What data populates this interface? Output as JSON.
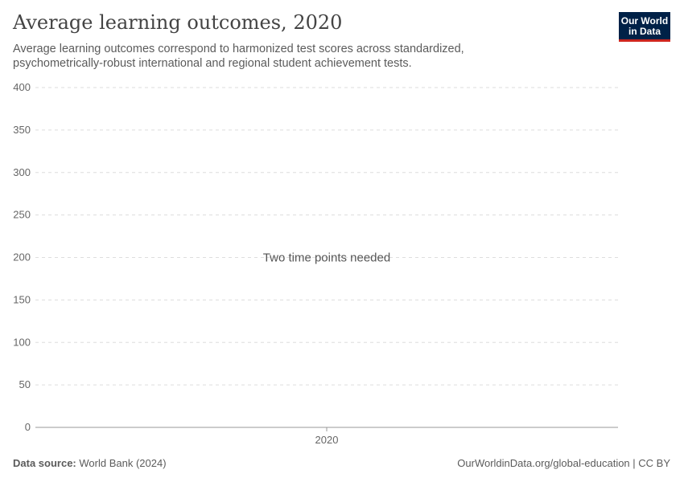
{
  "header": {
    "title": "Average learning outcomes, 2020",
    "subtitle": "Average learning outcomes correspond to harmonized test scores across standardized, psychometrically-robust international and regional student achievement tests.",
    "logo": "Our World in Data"
  },
  "footer": {
    "source_label": "Data source:",
    "source": "World Bank (2024)",
    "url": "OurWorldinData.org/global-education | CC BY"
  },
  "chart_data": {
    "type": "line",
    "title": "Average learning outcomes, 2020",
    "x": [
      "2020"
    ],
    "series": [],
    "ylim": [
      0,
      400
    ],
    "yticks": [
      0,
      50,
      100,
      150,
      200,
      250,
      300,
      350,
      400
    ],
    "xticks": [
      "2020"
    ],
    "grid": true,
    "message": "Two time points needed"
  }
}
